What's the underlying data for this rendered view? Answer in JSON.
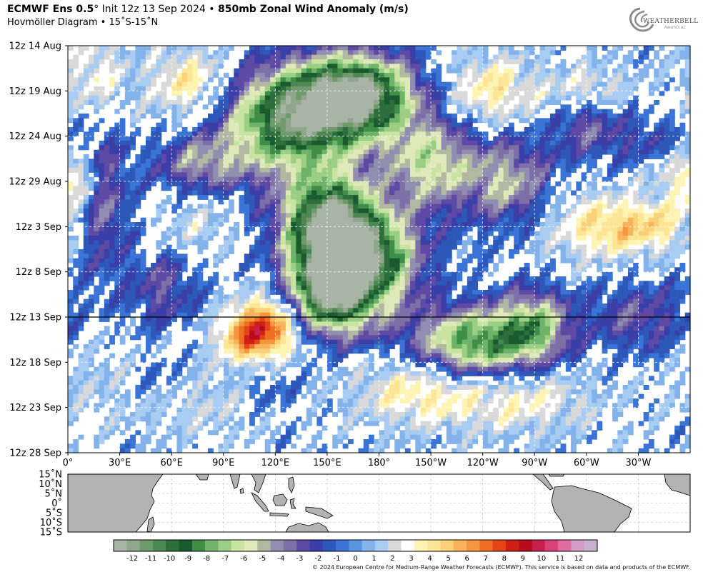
{
  "header": {
    "model": "ECMWF Ens 0.5",
    "deg": "°",
    "init": " Init 12z 13 Sep 2024",
    "bullet": " • ",
    "variable": "850mb Zonal Wind Anomaly (m/s)",
    "subtitle": "Hovmöller Diagram • 15˚S-15˚N"
  },
  "logo": {
    "text": "WEATHERBELL",
    "sub": "ANALYTICS LLC"
  },
  "copyright": "© 2024 European Centre for Medium-Range Weather Forecasts (ECMWF). This service is based on data and products of the ECMWF.",
  "chart_data": {
    "type": "heatmap",
    "title": "850mb Zonal Wind Anomaly (m/s)",
    "subtitle": "Hovmöller Diagram • 15˚S-15˚N",
    "y_tick_labels": [
      "12z 14 Aug",
      "12z 19 Aug",
      "12z 24 Aug",
      "12z 29 Aug",
      "12z 3 Sep",
      "12z 8 Sep",
      "12z 13 Sep",
      "12z 18 Sep",
      "12z 23 Sep",
      "12z 28 Sep"
    ],
    "x_tick_labels": [
      "0°",
      "30°E",
      "60°E",
      "90°E",
      "120°E",
      "150°E",
      "180°",
      "150°W",
      "120°W",
      "90°W",
      "60°W",
      "30°W"
    ],
    "x_tick_longitudes": [
      0,
      30,
      60,
      90,
      120,
      150,
      180,
      210,
      240,
      270,
      300,
      330
    ],
    "xlim": [
      0,
      360
    ],
    "init_line": "12z 13 Sep",
    "map_lat_labels": [
      "15˚N",
      "10˚N",
      "5˚N",
      "0˚",
      "5˚S",
      "10˚S",
      "15˚S"
    ],
    "colorbar_ticks": [
      "-12",
      "-11",
      "-10",
      "-9",
      "-8",
      "-7",
      "-6",
      "-5",
      "-4",
      "-3",
      "-2",
      "-1",
      "0",
      "1",
      "2",
      "3",
      "4",
      "5",
      "6",
      "7",
      "8",
      "9",
      "10",
      "11",
      "12"
    ],
    "colorbar_range": [
      -13,
      13
    ],
    "colorbar_colors": [
      "#a8b4a5",
      "#8fa68c",
      "#6f9a6c",
      "#4d8751",
      "#2d6e3c",
      "#1a5a2f",
      "#3e8e48",
      "#6fb36b",
      "#9bcf86",
      "#c8e3a2",
      "#dfe9b9",
      "#b3b8a3",
      "#908fb2",
      "#7e6fa6",
      "#5e4aa4",
      "#3a3fa8",
      "#2d57b8",
      "#3a74d6",
      "#5a95e4",
      "#84b3ec",
      "#a9cdf2",
      "#d9d9d9",
      "#ffffff",
      "#fff4b4",
      "#fde596",
      "#fbd07a",
      "#f8b45c",
      "#f5963f",
      "#ee6f24",
      "#e44518",
      "#d02016",
      "#b80c1c",
      "#c91f4e",
      "#d8427a",
      "#e06ba1",
      "#d49bc6",
      "#c7b0d2"
    ],
    "anomaly_regions": [
      {
        "lon": 150,
        "day": 7,
        "amp": -9,
        "rl": 40,
        "rd": 5
      },
      {
        "lon": 170,
        "day": 5,
        "amp": -8,
        "rl": 30,
        "rd": 4
      },
      {
        "lon": 120,
        "day": 9,
        "amp": -6,
        "rl": 35,
        "rd": 6
      },
      {
        "lon": 150,
        "day": 19,
        "amp": -10,
        "rl": 25,
        "rd": 5
      },
      {
        "lon": 160,
        "day": 25,
        "amp": -9,
        "rl": 30,
        "rd": 6
      },
      {
        "lon": 145,
        "day": 28,
        "amp": -7,
        "rl": 25,
        "rd": 4
      },
      {
        "lon": 175,
        "day": 23,
        "amp": -6,
        "rl": 30,
        "rd": 5
      },
      {
        "lon": 210,
        "day": 13,
        "amp": -6,
        "rl": 25,
        "rd": 5
      },
      {
        "lon": 255,
        "day": 15,
        "amp": -5,
        "rl": 25,
        "rd": 5
      },
      {
        "lon": 235,
        "day": 33,
        "amp": -9,
        "rl": 35,
        "rd": 4
      },
      {
        "lon": 270,
        "day": 31,
        "amp": -6,
        "rl": 20,
        "rd": 4
      },
      {
        "lon": 75,
        "day": 13,
        "amp": -4,
        "rl": 25,
        "rd": 3
      },
      {
        "lon": 20,
        "day": 17,
        "amp": -4,
        "rl": 15,
        "rd": 8
      },
      {
        "lon": 55,
        "day": 27,
        "amp": -3,
        "rl": 20,
        "rd": 4
      },
      {
        "lon": 50,
        "day": 37,
        "amp": -3,
        "rl": 25,
        "rd": 3
      },
      {
        "lon": 330,
        "day": 30,
        "amp": -3,
        "rl": 30,
        "rd": 4
      },
      {
        "lon": 300,
        "day": 8,
        "amp": -4,
        "rl": 20,
        "rd": 4
      },
      {
        "lon": 335,
        "day": 12,
        "amp": -3,
        "rl": 20,
        "rd": 4
      },
      {
        "lon": 115,
        "day": 38,
        "amp": -2,
        "rl": 20,
        "rd": 3
      },
      {
        "lon": 105,
        "day": 32,
        "amp": 6,
        "rl": 20,
        "rd": 3
      },
      {
        "lon": 122,
        "day": 30,
        "amp": 6,
        "rl": 20,
        "rd": 4
      },
      {
        "lon": 205,
        "day": 38,
        "amp": 4,
        "rl": 40,
        "rd": 4
      },
      {
        "lon": 265,
        "day": 39,
        "amp": 3,
        "rl": 40,
        "rd": 4
      },
      {
        "lon": 70,
        "day": 4,
        "amp": 4,
        "rl": 25,
        "rd": 4
      },
      {
        "lon": 245,
        "day": 5,
        "amp": 4,
        "rl": 25,
        "rd": 4
      },
      {
        "lon": 300,
        "day": 5,
        "amp": 4,
        "rl": 25,
        "rd": 3
      },
      {
        "lon": 335,
        "day": 20,
        "amp": 4,
        "rl": 30,
        "rd": 3
      },
      {
        "lon": 340,
        "day": 14,
        "amp": 3,
        "rl": 20,
        "rd": 3
      },
      {
        "lon": 5,
        "day": 15,
        "amp": 4,
        "rl": 15,
        "rd": 3
      },
      {
        "lon": 75,
        "day": 20,
        "amp": 2,
        "rl": 20,
        "rd": 3
      },
      {
        "lon": 300,
        "day": 20,
        "amp": 3,
        "rl": 30,
        "rd": 4
      },
      {
        "lon": 15,
        "day": 3,
        "amp": 3,
        "rl": 20,
        "rd": 5
      },
      {
        "lon": 30,
        "day": 37,
        "amp": 2,
        "rl": 35,
        "rd": 4
      },
      {
        "lon": 80,
        "day": 39,
        "amp": 2,
        "rl": 40,
        "rd": 4
      }
    ],
    "grid": true
  }
}
